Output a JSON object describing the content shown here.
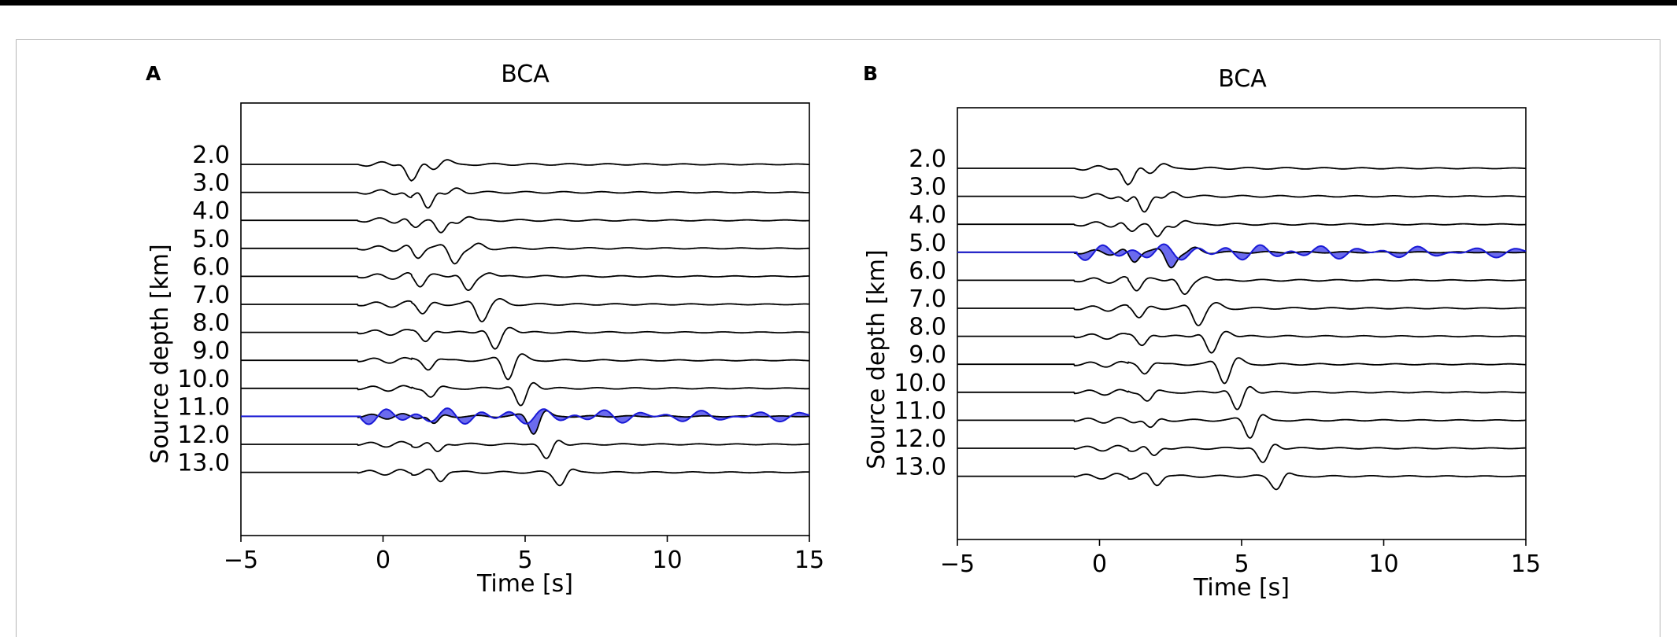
{
  "colors": {
    "trace": "#000000",
    "highlight_line": "#1a1ad6",
    "highlight_fill": "#3a3ae8",
    "axes": "#000000"
  },
  "chart_data": [
    {
      "type": "line",
      "panel_label": "A",
      "title": "BCA",
      "xlabel": "Time [s]",
      "ylabel": "Source depth [km]",
      "xlim": [
        -5,
        15
      ],
      "x_ticks": [
        -5,
        0,
        5,
        10,
        15
      ],
      "x_tick_labels": [
        "−5",
        "0",
        "5",
        "10",
        "15"
      ],
      "depth_labels": [
        "2.0",
        "3.0",
        "4.0",
        "5.0",
        "6.0",
        "7.0",
        "8.0",
        "9.0",
        "10.0",
        "11.0",
        "12.0",
        "13.0"
      ],
      "depths_km": [
        2,
        3,
        4,
        5,
        6,
        7,
        8,
        9,
        10,
        11,
        12,
        13
      ],
      "highlighted_depth_km": 11,
      "grid": false,
      "description_series": "black synthetic waveforms at each source depth; observed waveform (blue) overlaid at best-fit depth"
    },
    {
      "type": "line",
      "panel_label": "B",
      "title": "BCA",
      "xlabel": "Time [s]",
      "ylabel": "Source depth [km]",
      "xlim": [
        -5,
        15
      ],
      "x_ticks": [
        -5,
        0,
        5,
        10,
        15
      ],
      "x_tick_labels": [
        "−5",
        "0",
        "5",
        "10",
        "15"
      ],
      "depth_labels": [
        "2.0",
        "3.0",
        "4.0",
        "5.0",
        "6.0",
        "7.0",
        "8.0",
        "9.0",
        "10.0",
        "11.0",
        "12.0",
        "13.0"
      ],
      "depths_km": [
        2,
        3,
        4,
        5,
        6,
        7,
        8,
        9,
        10,
        11,
        12,
        13
      ],
      "highlighted_depth_km": 5,
      "grid": false
    }
  ]
}
